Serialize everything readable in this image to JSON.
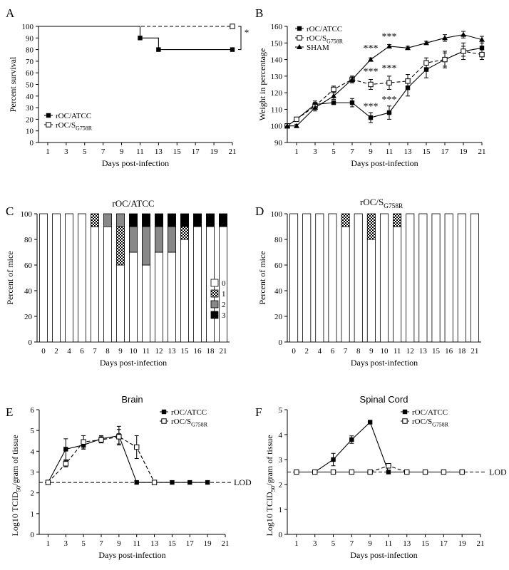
{
  "chart_data": [
    {
      "panel": "A",
      "type": "line",
      "ylabel": "Percent survival",
      "xlabel": "Days post-infection",
      "xlim": [
        0,
        21
      ],
      "ylim": [
        0,
        100
      ],
      "xticks": [
        1,
        3,
        5,
        7,
        9,
        11,
        13,
        15,
        17,
        19,
        21
      ],
      "yticks": [
        0,
        10,
        20,
        30,
        40,
        50,
        60,
        70,
        80,
        90,
        100
      ],
      "significance": "*",
      "series": [
        {
          "name": "rOC/ATCC",
          "marker": "filled-square",
          "line": "solid",
          "x": [
            0,
            11,
            13,
            21
          ],
          "y": [
            100,
            90,
            80,
            80
          ]
        },
        {
          "name": "rOC/S_G758R",
          "marker": "open-square",
          "line": "dashed",
          "x": [
            0,
            21
          ],
          "y": [
            100,
            100
          ]
        }
      ],
      "legend_labels": [
        {
          "main": "rOC/S",
          "sub": "G758R"
        }
      ],
      "legend": "bottom-left"
    },
    {
      "panel": "B",
      "type": "line",
      "ylabel": "Weight in percentage",
      "xlabel": "Days post-infection",
      "xlim": [
        0,
        21
      ],
      "ylim": [
        90,
        160
      ],
      "xticks": [
        1,
        3,
        5,
        7,
        9,
        11,
        13,
        15,
        17,
        19,
        21
      ],
      "yticks": [
        90,
        100,
        110,
        120,
        130,
        140,
        150,
        160
      ],
      "series": [
        {
          "name": "rOC/ATCC",
          "marker": "filled-square",
          "line": "solid",
          "x": [
            0,
            1,
            3,
            5,
            7,
            9,
            11,
            13,
            15,
            17,
            19,
            21
          ],
          "y": [
            100,
            104,
            113,
            114,
            114,
            105,
            108,
            123,
            134,
            140,
            145,
            147
          ],
          "err": [
            0,
            1,
            2,
            1,
            2.5,
            3,
            4,
            5,
            5,
            4,
            3,
            4
          ]
        },
        {
          "name": "rOC/S_G758R",
          "marker": "open-square",
          "line": "dashed",
          "x": [
            0,
            1,
            3,
            5,
            7,
            9,
            11,
            13,
            15,
            17,
            19,
            21
          ],
          "y": [
            100,
            104,
            112,
            122,
            128,
            125,
            126,
            127,
            138,
            140,
            145,
            143
          ],
          "err": [
            0,
            1,
            2,
            2,
            2,
            3,
            4,
            4,
            3,
            5,
            5,
            3
          ]
        },
        {
          "name": "SHAM",
          "marker": "filled-triangle",
          "line": "solid",
          "x": [
            0,
            1,
            3,
            5,
            7,
            9,
            11,
            13,
            15,
            17,
            19,
            21
          ],
          "y": [
            100,
            100,
            111,
            118,
            128,
            140,
            148,
            147,
            150,
            153,
            155,
            152
          ],
          "err": [
            0,
            1,
            2,
            2,
            2,
            1,
            1,
            1,
            1,
            2,
            2,
            2
          ]
        }
      ],
      "legend_labels": [
        {
          "main": "rOC/S",
          "sub": "G758R"
        }
      ],
      "annotations": [
        {
          "text": "***",
          "x": 9,
          "y": 145
        },
        {
          "text": "***",
          "x": 11,
          "y": 152
        },
        {
          "text": "***",
          "x": 9,
          "y": 131
        },
        {
          "text": "***",
          "x": 11,
          "y": 133
        },
        {
          "text": "***",
          "x": 11,
          "y": 114
        },
        {
          "text": "***",
          "x": 9,
          "y": 110
        }
      ],
      "legend": "top-left"
    },
    {
      "panel": "C",
      "type": "bar",
      "stacked": true,
      "title": "rOC/ATCC",
      "ylabel": "Percent of mice",
      "xlabel": "Days post-infection",
      "ylim": [
        0,
        100
      ],
      "yticks": [
        0,
        20,
        40,
        60,
        80,
        100
      ],
      "categories": [
        "0",
        "2",
        "4",
        "6",
        "7",
        "8",
        "9",
        "10",
        "11",
        "12",
        "13",
        "15",
        "16",
        "18",
        "21"
      ],
      "series": [
        {
          "name": "0",
          "values": [
            100,
            100,
            100,
            100,
            90,
            90,
            60,
            70,
            60,
            70,
            70,
            80,
            90,
            90,
            90
          ]
        },
        {
          "name": "1",
          "values": [
            0,
            0,
            0,
            0,
            10,
            0,
            30,
            0,
            0,
            0,
            0,
            10,
            0,
            0,
            0
          ]
        },
        {
          "name": "2",
          "values": [
            0,
            0,
            0,
            0,
            0,
            10,
            10,
            20,
            30,
            20,
            20,
            0,
            0,
            0,
            0
          ]
        },
        {
          "name": "3",
          "values": [
            0,
            0,
            0,
            0,
            0,
            0,
            0,
            10,
            10,
            10,
            10,
            10,
            10,
            10,
            10
          ]
        }
      ],
      "legend": "right"
    },
    {
      "panel": "D",
      "type": "bar",
      "stacked": true,
      "title_main": "rOC/S",
      "title_sub": "G758R",
      "ylabel": "Percent of mice",
      "xlabel": "Days post-infection",
      "ylim": [
        0,
        100
      ],
      "yticks": [
        0,
        20,
        40,
        60,
        80,
        100
      ],
      "categories": [
        "0",
        "2",
        "4",
        "6",
        "7",
        "8",
        "9",
        "10",
        "11",
        "12",
        "13",
        "15",
        "16",
        "18",
        "21"
      ],
      "series": [
        {
          "name": "0",
          "values": [
            100,
            100,
            100,
            100,
            90,
            100,
            80,
            100,
            90,
            100,
            100,
            100,
            100,
            100,
            100
          ]
        },
        {
          "name": "1",
          "values": [
            0,
            0,
            0,
            0,
            10,
            0,
            20,
            0,
            10,
            0,
            0,
            0,
            0,
            0,
            0
          ]
        },
        {
          "name": "2",
          "values": [
            0,
            0,
            0,
            0,
            0,
            0,
            0,
            0,
            0,
            0,
            0,
            0,
            0,
            0,
            0
          ]
        },
        {
          "name": "3",
          "values": [
            0,
            0,
            0,
            0,
            0,
            0,
            0,
            0,
            0,
            0,
            0,
            0,
            0,
            0,
            0
          ]
        }
      ]
    },
    {
      "panel": "E",
      "type": "line",
      "title": "Brain",
      "ylabel_main": "Log10 TCID",
      "ylabel_sub": "50",
      "ylabel_tail": "/gram of tissue",
      "xlabel": "Days post-infection",
      "xlim": [
        0,
        21
      ],
      "ylim": [
        0,
        6
      ],
      "xticks": [
        1,
        3,
        5,
        7,
        9,
        11,
        13,
        15,
        17,
        19,
        21
      ],
      "yticks": [
        0,
        1,
        2,
        3,
        4,
        5,
        6
      ],
      "lod": {
        "label": "LOD",
        "y": 2.5
      },
      "series": [
        {
          "name": "rOC/ATCC",
          "marker": "filled-square",
          "line": "solid",
          "x": [
            1,
            3,
            5,
            7,
            9,
            11,
            13,
            15,
            17,
            19
          ],
          "y": [
            2.5,
            4.1,
            4.3,
            4.6,
            4.75,
            2.5,
            2.5,
            2.5,
            2.5,
            2.5
          ],
          "err": [
            0,
            0.5,
            0.2,
            0.15,
            0.45,
            0,
            0,
            0,
            0,
            0
          ]
        },
        {
          "name": "rOC/S_G758R",
          "marker": "open-square",
          "line": "dashed",
          "x": [
            1,
            3,
            5,
            7,
            9,
            11,
            13
          ],
          "y": [
            2.5,
            3.4,
            4.45,
            4.55,
            4.7,
            4.2,
            2.5
          ],
          "err": [
            0,
            0.15,
            0.3,
            0.15,
            0.35,
            0.55,
            0
          ]
        }
      ],
      "legend_labels": [
        {
          "main": "rOC/S",
          "sub": "G758R"
        }
      ],
      "legend": "top-right"
    },
    {
      "panel": "F",
      "type": "line",
      "title": "Spinal Cord",
      "ylabel_main": "Log10 TCID",
      "ylabel_sub": "50",
      "ylabel_tail": "/gram of tissue",
      "xlabel": "Days post-infection",
      "xlim": [
        0,
        21
      ],
      "ylim": [
        0,
        5
      ],
      "xticks": [
        1,
        3,
        5,
        7,
        9,
        11,
        13,
        15,
        17,
        19,
        21
      ],
      "yticks": [
        0,
        1,
        2,
        3,
        4,
        5
      ],
      "lod": {
        "label": "LOD",
        "y": 2.5
      },
      "series": [
        {
          "name": "rOC/ATCC",
          "marker": "filled-square",
          "line": "solid",
          "x": [
            1,
            3,
            5,
            7,
            9,
            11,
            13,
            15,
            17,
            19
          ],
          "y": [
            2.5,
            2.5,
            3.0,
            3.8,
            4.5,
            2.5,
            2.5,
            2.5,
            2.5,
            2.5
          ],
          "err": [
            0,
            0,
            0.25,
            0.15,
            0,
            0,
            0,
            0,
            0,
            0
          ]
        },
        {
          "name": "rOC/S_G758R",
          "marker": "open-square",
          "line": "dashed",
          "x": [
            1,
            3,
            5,
            7,
            9,
            11,
            13,
            15,
            17,
            19
          ],
          "y": [
            2.5,
            2.5,
            2.5,
            2.5,
            2.5,
            2.75,
            2.5,
            2.5,
            2.5,
            2.5
          ],
          "err": [
            0,
            0,
            0,
            0,
            0,
            0,
            0,
            0,
            0,
            0
          ]
        }
      ],
      "legend_labels": [
        {
          "main": "rOC/S",
          "sub": "G758R"
        }
      ],
      "legend": "top-right"
    }
  ]
}
